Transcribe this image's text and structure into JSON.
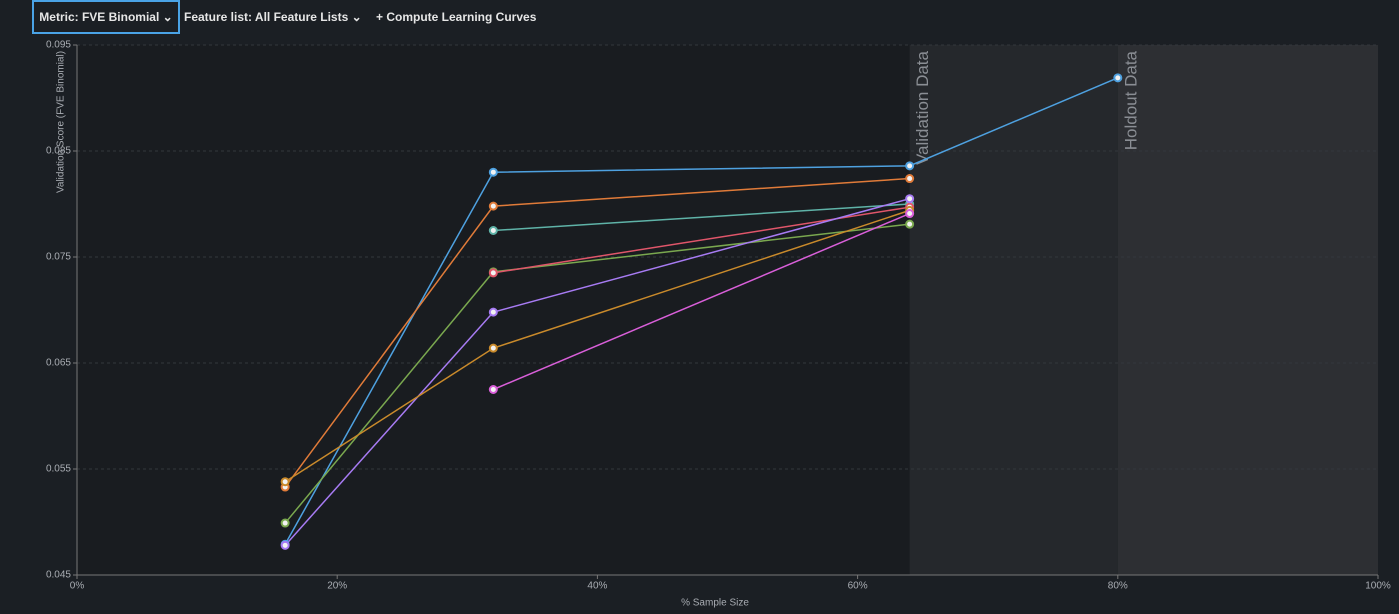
{
  "toolbar": {
    "metric": "Metric: FVE Binomial",
    "feature_list": "Feature list: All Feature Lists",
    "compute": "Compute Learning Curves"
  },
  "chart_data": {
    "type": "line",
    "x_label": "% Sample Size",
    "y_label": "Validation Score (FVE Binomial)",
    "x": [
      16,
      32,
      64,
      80
    ],
    "xlim": [
      0,
      100
    ],
    "xticks": [
      {
        "value": 0,
        "label": "0%"
      },
      {
        "value": 20,
        "label": "20%"
      },
      {
        "value": 40,
        "label": "40%"
      },
      {
        "value": 60,
        "label": "60%"
      },
      {
        "value": 80,
        "label": "80%"
      },
      {
        "value": 100,
        "label": "100%"
      }
    ],
    "ylim": [
      0.045,
      0.095
    ],
    "yticks": [
      0.045,
      0.055,
      0.065,
      0.075,
      0.085,
      0.095
    ],
    "grid": true,
    "regions": [
      {
        "label": "Validation Data",
        "x": [
          64,
          80
        ],
        "color": "#25282c"
      },
      {
        "label": "Holdout Data",
        "x": [
          80,
          100
        ],
        "color": "#2d2f33"
      }
    ],
    "series": [
      {
        "color": "#4ea1e0",
        "values": [
          0.0479,
          0.083,
          0.0836,
          0.0919
        ]
      },
      {
        "color": "#e07b39",
        "values": [
          0.0533,
          0.0798,
          0.0824,
          null
        ]
      },
      {
        "color": "#5fb3a8",
        "values": [
          null,
          0.0775,
          0.08,
          null
        ]
      },
      {
        "color": "#7aa84f",
        "values": [
          0.0499,
          0.0736,
          0.0781,
          null
        ]
      },
      {
        "color": "#e0566a",
        "values": [
          null,
          0.0735,
          0.0797,
          null
        ]
      },
      {
        "color": "#a77bf3",
        "values": [
          0.0478,
          0.0698,
          0.0805,
          null
        ]
      },
      {
        "color": "#c98a2b",
        "values": [
          0.0538,
          0.0664,
          0.0794,
          null
        ]
      },
      {
        "color": "#d95fd9",
        "values": [
          null,
          0.0625,
          0.0791,
          null
        ]
      }
    ]
  }
}
